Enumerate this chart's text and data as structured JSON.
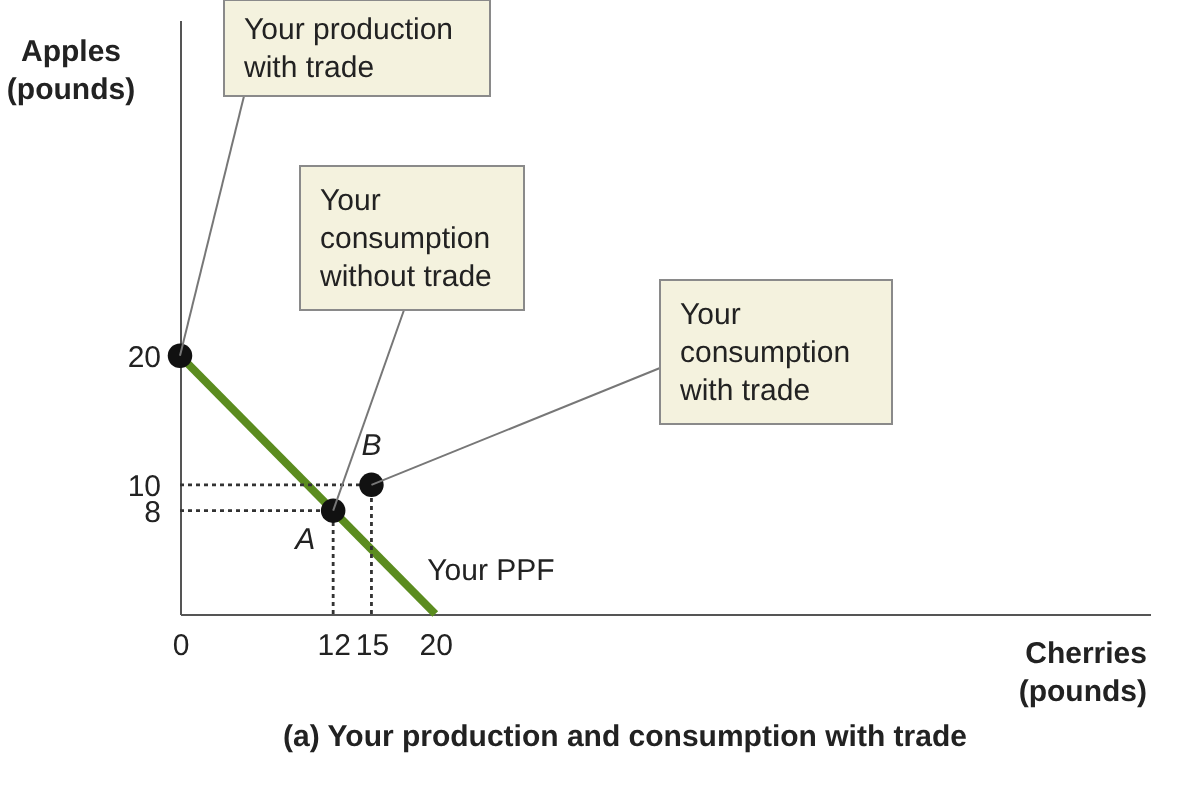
{
  "chart_data": {
    "type": "line",
    "title": "(a) Your production and consumption with trade",
    "xlabel": "Cherries (pounds)",
    "ylabel": "Apples (pounds)",
    "xlim": [
      0,
      76
    ],
    "ylim": [
      0,
      46
    ],
    "xticks": [
      0,
      12,
      15,
      20
    ],
    "yticks": [
      8,
      10,
      20
    ],
    "grid": false,
    "legend": false,
    "series": [
      {
        "name": "Your PPF",
        "type": "line",
        "line_style": "solid",
        "color": "#5b8c1f",
        "x": [
          0,
          20
        ],
        "values": [
          20,
          0
        ]
      },
      {
        "type": "line",
        "line_style": "dotted",
        "color": "#333333",
        "x": [
          0,
          15
        ],
        "values": [
          10,
          10
        ]
      },
      {
        "type": "line",
        "line_style": "dotted",
        "color": "#333333",
        "x": [
          15,
          15
        ],
        "values": [
          0,
          10
        ]
      },
      {
        "type": "line",
        "line_style": "dotted",
        "color": "#333333",
        "x": [
          0,
          12
        ],
        "values": [
          8,
          8
        ]
      },
      {
        "type": "line",
        "line_style": "dotted",
        "color": "#333333",
        "x": [
          12,
          12
        ],
        "values": [
          0,
          8
        ]
      },
      {
        "type": "scatter",
        "marker": "circle",
        "color": "#111111",
        "x": [
          0,
          12,
          15
        ],
        "values": [
          20,
          8,
          10
        ]
      }
    ],
    "annotations": [
      {
        "text": "A",
        "x": 12,
        "y": 8
      },
      {
        "text": "B",
        "x": 15,
        "y": 10
      },
      {
        "text": "Your production with trade",
        "x": 0,
        "y": 20
      },
      {
        "text": "Your consumption without trade",
        "x": 12,
        "y": 8
      },
      {
        "text": "Your consumption with trade",
        "x": 15,
        "y": 10
      }
    ]
  }
}
